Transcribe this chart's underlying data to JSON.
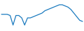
{
  "x": [
    0,
    1,
    2,
    3,
    4,
    5,
    6,
    7,
    8,
    9,
    10,
    11,
    12,
    13,
    14,
    15,
    16,
    17,
    18,
    19,
    20,
    21,
    22,
    23,
    24,
    25,
    26,
    27,
    28
  ],
  "y": [
    28,
    28,
    28,
    26,
    10,
    26,
    26,
    22,
    10,
    22,
    22,
    24,
    26,
    28,
    30,
    34,
    36,
    38,
    40,
    42,
    44,
    44,
    42,
    40,
    36,
    30,
    24,
    18,
    16
  ],
  "line_color": "#1a7abf",
  "linewidth": 0.9,
  "background_color": "#ffffff"
}
